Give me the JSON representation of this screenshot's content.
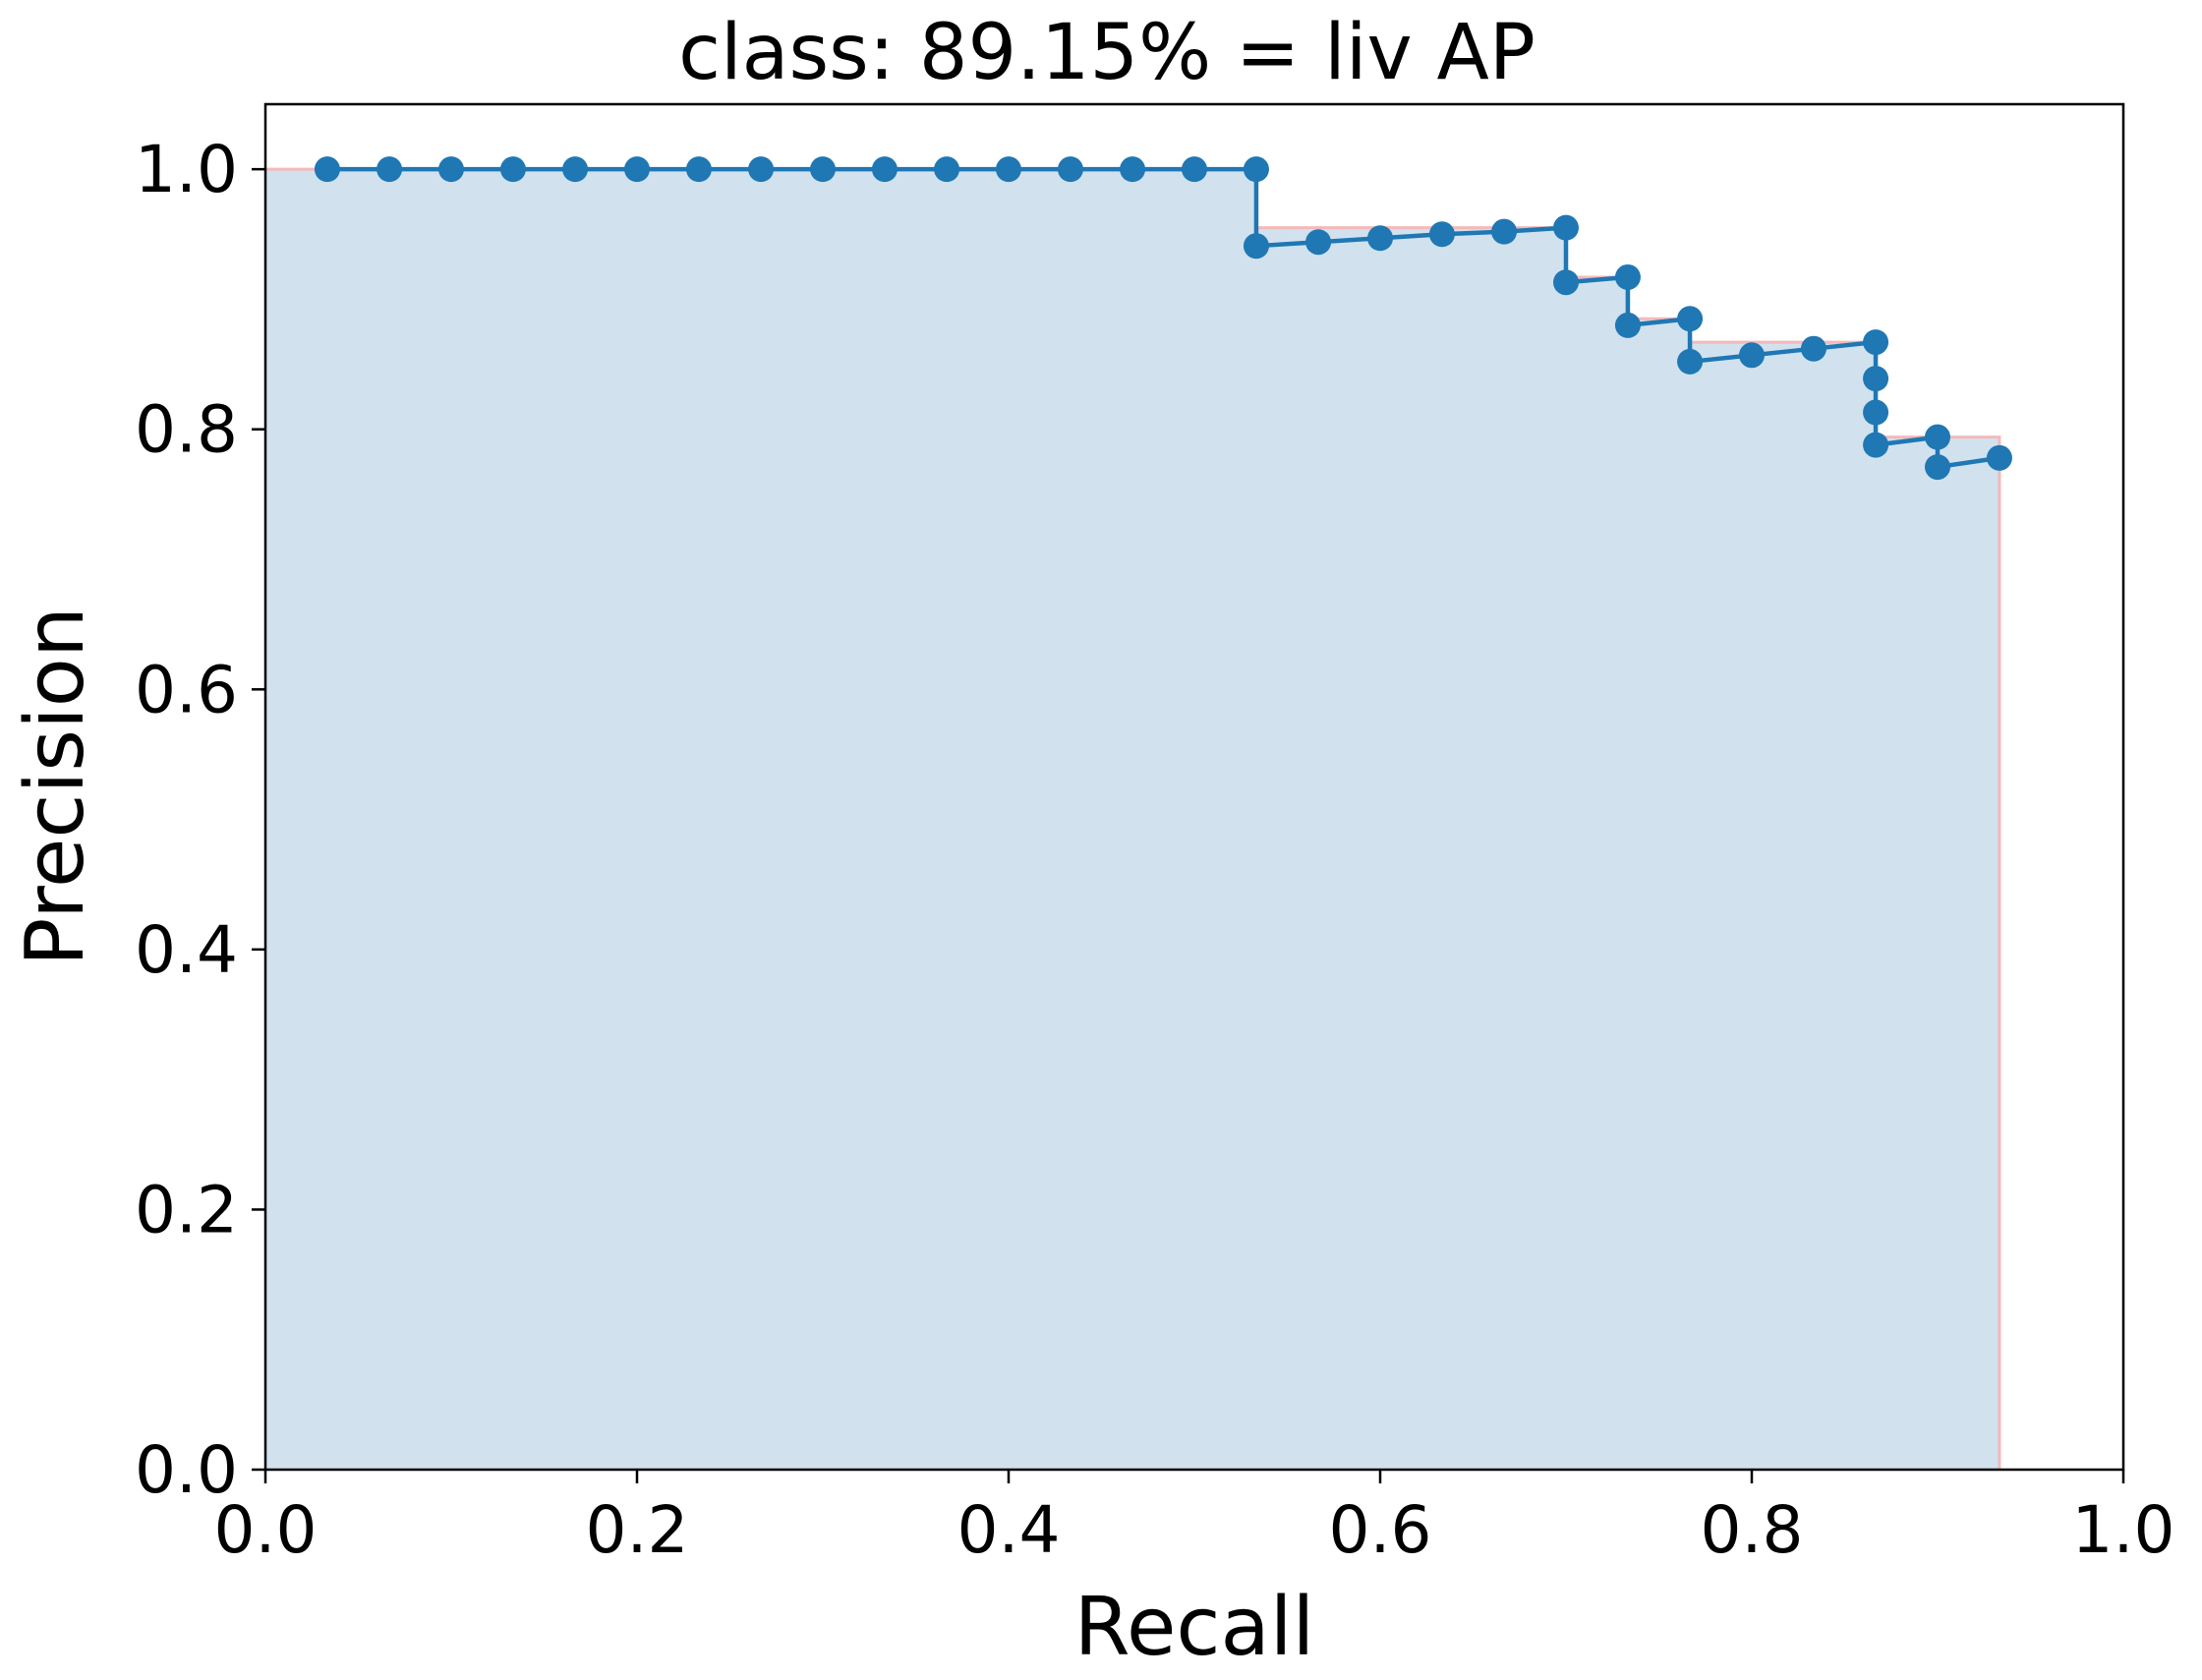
{
  "chart_data": {
    "type": "line",
    "title": "class: 89.15% = liv AP",
    "xlabel": "Recall",
    "ylabel": "Precision",
    "xlim": [
      0.0,
      1.0
    ],
    "ylim": [
      0.0,
      1.05
    ],
    "x_ticks": [
      "0.0",
      "0.2",
      "0.4",
      "0.6",
      "0.8",
      "1.0"
    ],
    "y_ticks": [
      "0.0",
      "0.2",
      "0.4",
      "0.6",
      "0.8",
      "1.0"
    ],
    "grid": false,
    "legend": "none",
    "series": [
      {
        "role": "precision-recall points",
        "color": "#1f77b4",
        "marker": "circle",
        "x": [
          0.0333,
          0.0667,
          0.1,
          0.1333,
          0.1667,
          0.2,
          0.2333,
          0.2667,
          0.3,
          0.3333,
          0.3667,
          0.4,
          0.4333,
          0.4667,
          0.5,
          0.5333,
          0.5333,
          0.5667,
          0.6,
          0.6333,
          0.6667,
          0.7,
          0.7,
          0.7333,
          0.7333,
          0.7667,
          0.7667,
          0.8,
          0.8333,
          0.8667,
          0.8667,
          0.8667,
          0.8667,
          0.9,
          0.9,
          0.9333
        ],
        "y": [
          1.0,
          1.0,
          1.0,
          1.0,
          1.0,
          1.0,
          1.0,
          1.0,
          1.0,
          1.0,
          1.0,
          1.0,
          1.0,
          1.0,
          1.0,
          1.0,
          0.941,
          0.944,
          0.947,
          0.95,
          0.952,
          0.955,
          0.913,
          0.917,
          0.88,
          0.885,
          0.852,
          0.857,
          0.862,
          0.867,
          0.839,
          0.813,
          0.788,
          0.794,
          0.771,
          0.778
        ]
      },
      {
        "role": "interpolated precision area",
        "fill_color": "#d1e2ee",
        "edge_color": "#f4b9b9",
        "x": [
          0.0,
          0.5333,
          0.5333,
          0.7,
          0.7,
          0.7333,
          0.7333,
          0.7667,
          0.7667,
          0.8667,
          0.8667,
          0.9333,
          0.9333
        ],
        "y": [
          1.0,
          1.0,
          0.955,
          0.955,
          0.917,
          0.917,
          0.885,
          0.885,
          0.867,
          0.867,
          0.794,
          0.794,
          0.0
        ]
      }
    ]
  }
}
